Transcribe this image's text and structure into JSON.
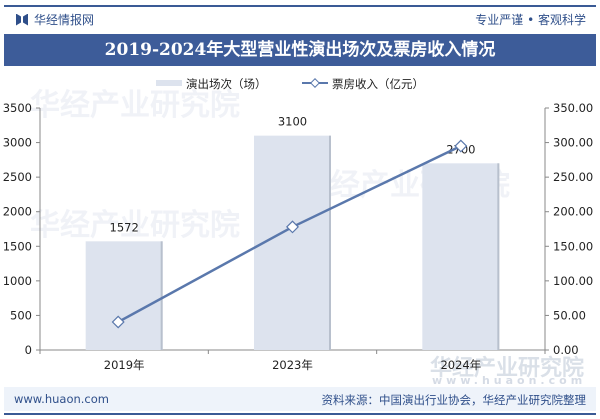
{
  "header": {
    "brand": "华经情报网",
    "slogan": "专业严谨 • 客观科学"
  },
  "footer": {
    "website": "www.huaon.com",
    "source": "资料来源：中国演出行业协会，华经产业研究院整理"
  },
  "watermark": {
    "text": "华经产业研究院",
    "url": "www.huaon.com"
  },
  "colors": {
    "bar": "#dde3ee",
    "line": "#5a78ac",
    "title_bg": "#3d5c99"
  },
  "chart_data": {
    "type": "bar",
    "title": "2019-2024年大型营业性演出场次及票房收入情况",
    "categories": [
      "2019年",
      "2023年",
      "2024年"
    ],
    "series": [
      {
        "name": "演出场次（场）",
        "type": "bar",
        "axis": "left",
        "values": [
          1572,
          3100,
          2700
        ],
        "labels": [
          "1572",
          "3100",
          "2700"
        ]
      },
      {
        "name": "票房收入（亿元）",
        "type": "line",
        "axis": "right",
        "values": [
          40.5,
          178,
          295
        ]
      }
    ],
    "y_left": {
      "range": [
        0,
        3500
      ],
      "ticks": [
        "0",
        "500",
        "1000",
        "1500",
        "2000",
        "2500",
        "3000",
        "3500"
      ]
    },
    "y_right": {
      "range": [
        0,
        350
      ],
      "ticks": [
        "0.00",
        "50.00",
        "100.00",
        "150.00",
        "200.00",
        "250.00",
        "300.00",
        "350.00"
      ]
    },
    "legend": "top-center",
    "grid": false
  }
}
